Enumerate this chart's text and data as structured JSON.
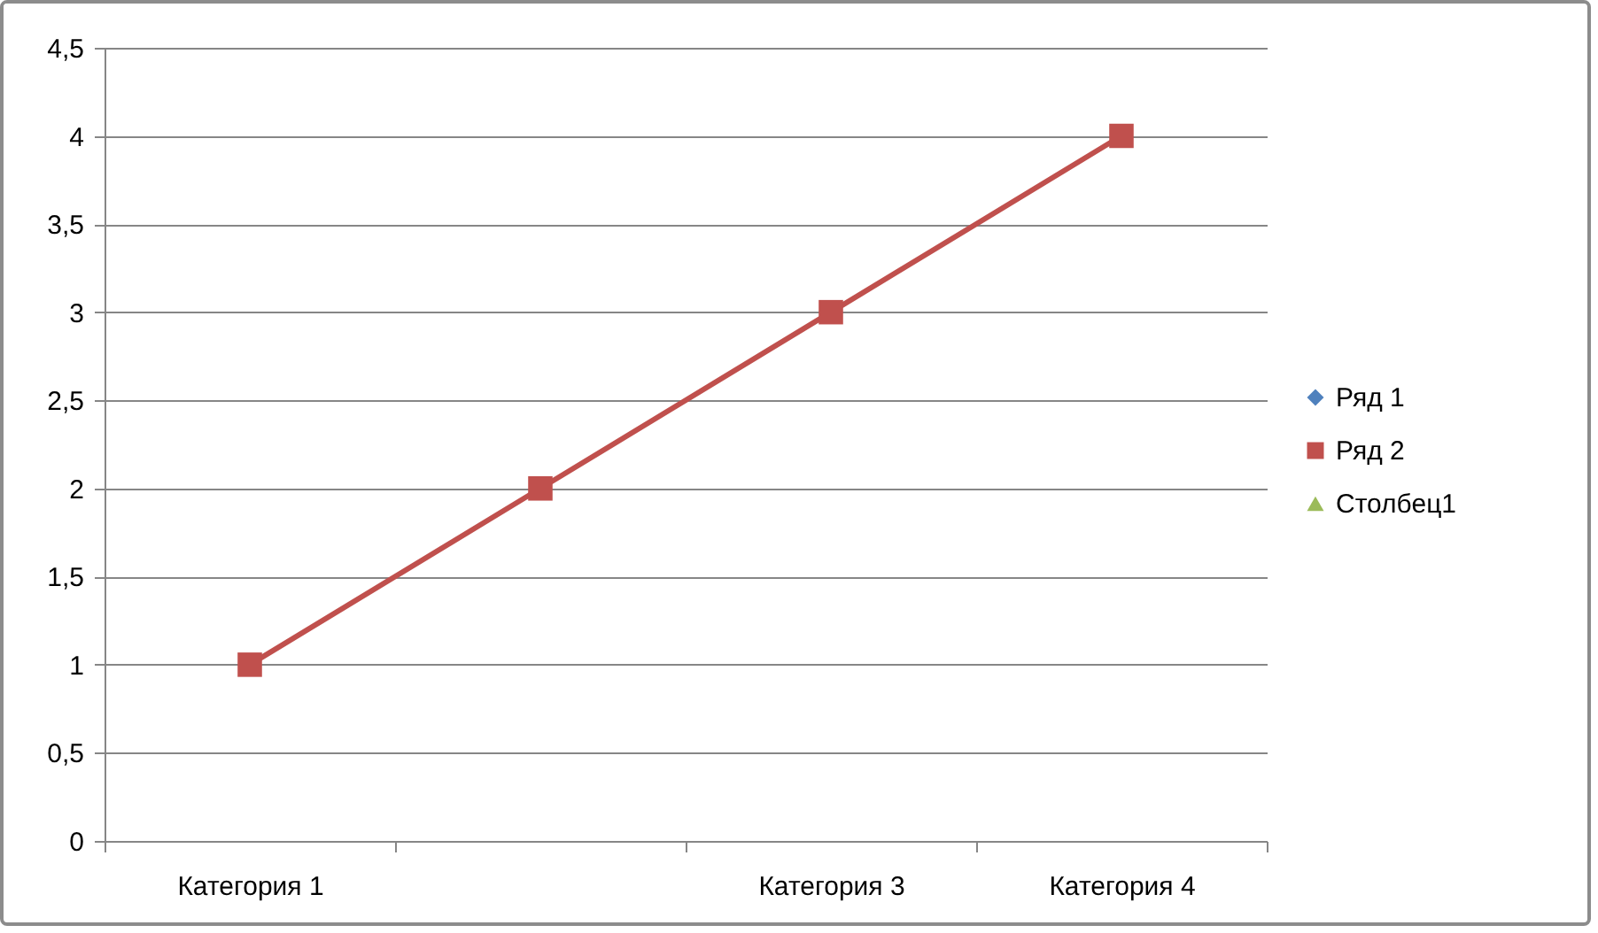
{
  "chart_data": {
    "type": "line",
    "categories": [
      "Категория 1",
      null,
      "Категория 3",
      "Категория 4"
    ],
    "series": [
      {
        "name": "Ряд 1",
        "color": "#4f81bd",
        "marker": "diamond",
        "values": [
          null,
          null,
          null,
          null
        ]
      },
      {
        "name": "Ряд 2",
        "color": "#c0504d",
        "marker": "square",
        "values": [
          1,
          2,
          3,
          4
        ]
      },
      {
        "name": "Столбец1",
        "color": "#9bbb59",
        "marker": "triangle",
        "values": [
          null,
          null,
          null,
          null
        ]
      }
    ],
    "ylim": [
      0,
      4.5
    ],
    "yticks": [
      0,
      {
        "value": 0.5,
        "label": "0,5"
      },
      1,
      {
        "value": 1.5,
        "label": "1,5"
      },
      2,
      {
        "value": 2.5,
        "label": "2,5"
      },
      3,
      {
        "value": 3.5,
        "label": "3,5"
      },
      4,
      {
        "value": 4.5,
        "label": "4,5"
      }
    ],
    "grid": "y",
    "legend": "right",
    "line_style": "solid"
  }
}
